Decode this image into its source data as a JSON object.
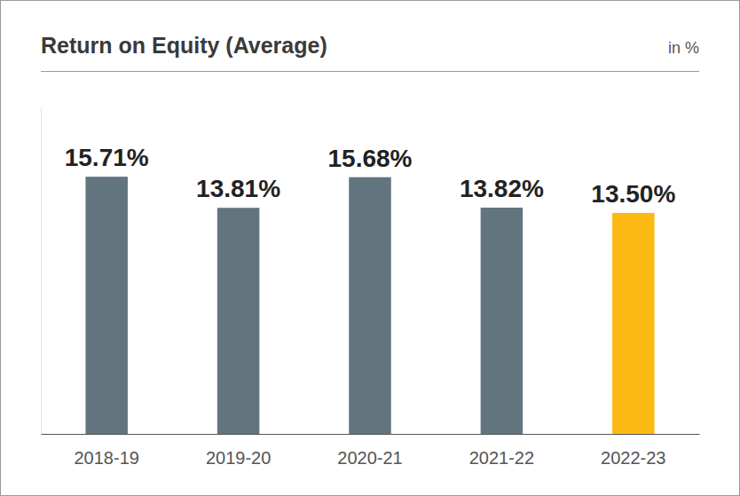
{
  "chart_data": {
    "type": "bar",
    "title": "Return on Equity (Average)",
    "unit": "in %",
    "categories": [
      "2018-19",
      "2019-20",
      "2020-21",
      "2021-22",
      "2022-23"
    ],
    "values": [
      15.71,
      13.81,
      15.68,
      13.82,
      13.5
    ],
    "value_labels": [
      "15.71%",
      "13.81%",
      "15.68%",
      "13.82%",
      "13.50%"
    ],
    "colors": [
      "#62757f",
      "#62757f",
      "#62757f",
      "#62757f",
      "#fdb913"
    ],
    "ylim": [
      0,
      20
    ],
    "data_labels": true,
    "tick_labels": "x",
    "grid": false
  }
}
